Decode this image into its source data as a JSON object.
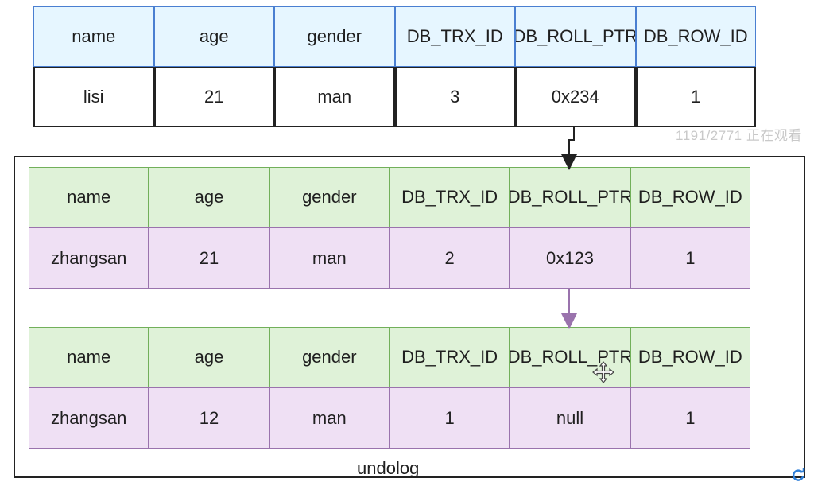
{
  "current_row": {
    "headers": [
      "name",
      "age",
      "gender",
      "DB_TRX_ID",
      "DB_ROLL_PTR",
      "DB_ROW_ID"
    ],
    "values": [
      "lisi",
      "21",
      "man",
      "3",
      "0x234",
      "1"
    ]
  },
  "undolog": {
    "label": "undolog",
    "versions": [
      {
        "headers": [
          "name",
          "age",
          "gender",
          "DB_TRX_ID",
          "DB_ROLL_PTR",
          "DB_ROW_ID"
        ],
        "values": [
          "zhangsan",
          "21",
          "man",
          "2",
          "0x123",
          "1"
        ]
      },
      {
        "headers": [
          "name",
          "age",
          "gender",
          "DB_TRX_ID",
          "DB_ROLL_PTR",
          "DB_ROW_ID"
        ],
        "values": [
          "zhangsan",
          "12",
          "man",
          "1",
          "null",
          "1"
        ]
      }
    ]
  },
  "watermark": "1191/2771 正在观看",
  "colors": {
    "current_header_fill": "#e6f6ff",
    "current_header_border": "#4a7fd1",
    "undo_header_fill": "#dff2d8",
    "undo_header_border": "#72b05a",
    "undo_value_fill": "#efe0f4",
    "undo_value_border": "#9a73ad",
    "arrow_purple": "#9a73ad"
  },
  "icons": [
    "move-cursor-icon",
    "refresh-icon"
  ]
}
